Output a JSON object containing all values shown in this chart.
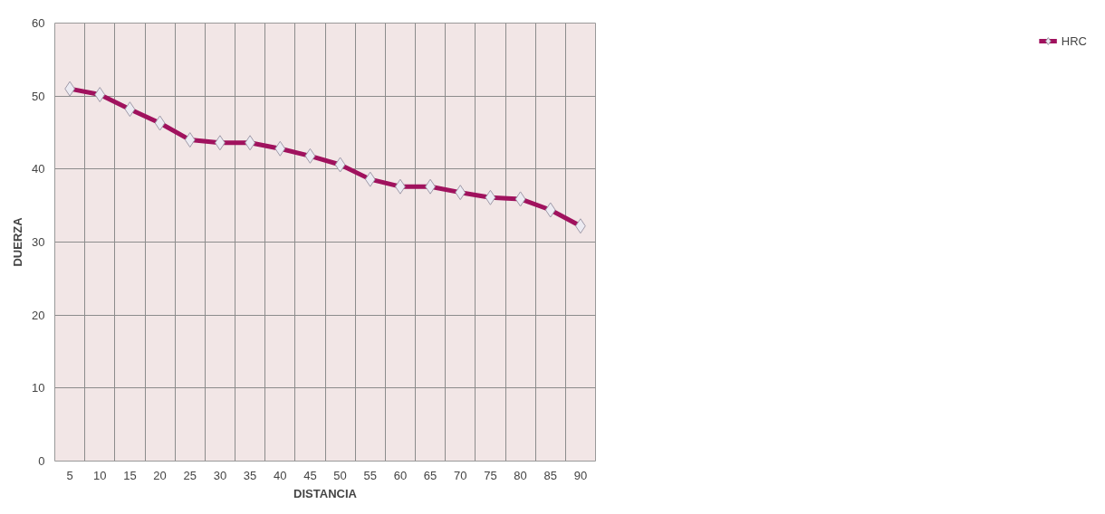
{
  "chart_data": {
    "type": "line",
    "xlabel": "DISTANCIA",
    "ylabel": "DUERZA",
    "categories": [
      "5",
      "10",
      "15",
      "20",
      "25",
      "30",
      "35",
      "40",
      "45",
      "50",
      "55",
      "60",
      "65",
      "70",
      "75",
      "80",
      "85",
      "90"
    ],
    "series": [
      {
        "name": "HRC",
        "color": "#a0125e",
        "values": [
          51,
          50.2,
          48.2,
          46.3,
          44,
          43.6,
          43.6,
          42.8,
          41.8,
          40.6,
          38.6,
          37.6,
          37.6,
          36.8,
          36.1,
          35.9,
          34.4,
          32.2
        ]
      }
    ],
    "ylim": [
      0,
      60
    ],
    "yticks": [
      0,
      10,
      20,
      30,
      40,
      50,
      60
    ],
    "grid": true,
    "legend": "right",
    "marker": "diamond",
    "line_style": "solid"
  }
}
